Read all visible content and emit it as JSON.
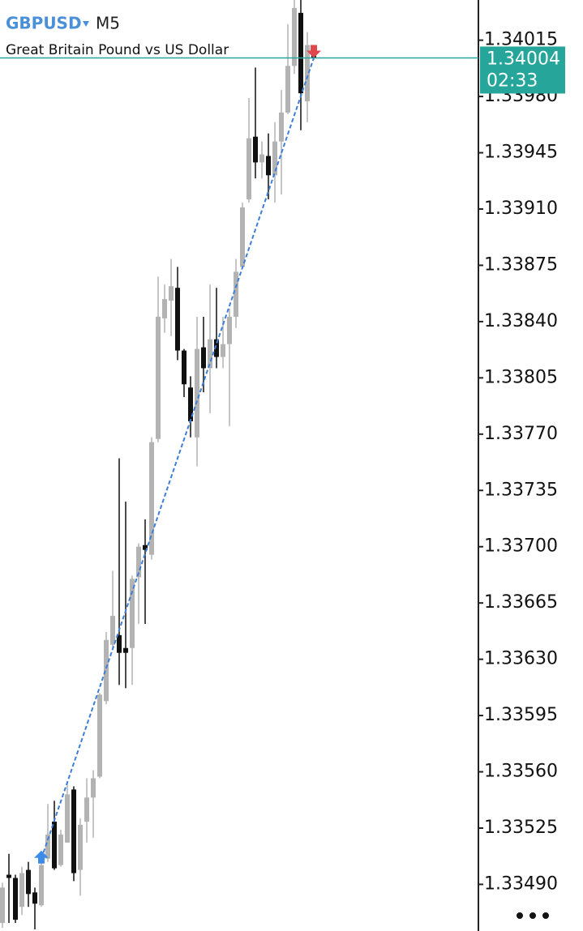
{
  "chart_data": {
    "type": "candlestick",
    "title": "GBPUSD",
    "timeframe": "M5",
    "subtitle": "Great Britain Pound vs US Dollar",
    "open": [
      1.33466,
      1.33496,
      1.33494,
      1.33476,
      1.33499,
      1.33485,
      1.33477,
      1.33506,
      1.33529,
      1.33502,
      1.33516,
      1.33549,
      1.33499,
      1.33529,
      1.33544,
      1.33557,
      1.33604,
      1.33639,
      1.33645,
      1.33637,
      1.33637,
      1.33681,
      1.33701,
      1.33695,
      1.33767,
      1.33842,
      1.33853,
      1.33861,
      1.33822,
      1.33799,
      1.33768,
      1.33824,
      1.33811,
      1.33829,
      1.33818,
      1.33826,
      1.33843,
      1.33874,
      1.33916,
      1.33955,
      1.33939,
      1.33943,
      1.33931,
      1.33952,
      1.3397,
      1.33999,
      1.34032,
      1.33977,
      1.34008
    ],
    "high": [
      1.33491,
      1.33509,
      1.33496,
      1.33501,
      1.33504,
      1.33488,
      1.33506,
      1.3354,
      1.33542,
      1.33524,
      1.33554,
      1.33551,
      1.33531,
      1.33556,
      1.33561,
      1.33609,
      1.33647,
      1.33685,
      1.33755,
      1.33728,
      1.33682,
      1.33702,
      1.33717,
      1.33768,
      1.33868,
      1.33863,
      1.33879,
      1.33874,
      1.33823,
      1.33806,
      1.33843,
      1.33843,
      1.33863,
      1.33861,
      1.33843,
      1.33848,
      1.33879,
      1.33914,
      1.33979,
      1.33998,
      1.33952,
      1.33957,
      1.33964,
      1.33984,
      1.34025,
      1.3404,
      1.3404,
      1.3402,
      1.3401
    ],
    "low": [
      1.33463,
      1.33466,
      1.33466,
      1.33471,
      1.33476,
      1.33462,
      1.33476,
      1.33504,
      1.33499,
      1.33501,
      1.33516,
      1.33492,
      1.33483,
      1.33516,
      1.33519,
      1.33556,
      1.33602,
      1.33637,
      1.33614,
      1.33612,
      1.33614,
      1.33652,
      1.33652,
      1.33692,
      1.33765,
      1.33833,
      1.33831,
      1.33816,
      1.33793,
      1.33768,
      1.3375,
      1.33796,
      1.33783,
      1.33811,
      1.33811,
      1.33775,
      1.33836,
      1.33874,
      1.33914,
      1.33929,
      1.33929,
      1.33916,
      1.33914,
      1.33919,
      1.33969,
      1.33994,
      1.33959,
      1.33964,
      1.34003
    ],
    "close": [
      1.33488,
      1.33494,
      1.33468,
      1.33497,
      1.33484,
      1.33478,
      1.33502,
      1.33521,
      1.335,
      1.33521,
      1.33546,
      1.33497,
      1.33527,
      1.33544,
      1.33556,
      1.33608,
      1.33642,
      1.33657,
      1.33634,
      1.33634,
      1.3368,
      1.337,
      1.33698,
      1.33765,
      1.33843,
      1.33854,
      1.33862,
      1.33822,
      1.33801,
      1.33778,
      1.33823,
      1.33811,
      1.33829,
      1.33818,
      1.33826,
      1.33843,
      1.33871,
      1.33911,
      1.33954,
      1.33939,
      1.33944,
      1.33931,
      1.33952,
      1.3397,
      1.33999,
      1.34035,
      1.33982,
      1.34012,
      1.34004
    ],
    "up_color": "#b3b3b3",
    "down_color": "#111111",
    "ylim": [
      1.33461,
      1.3404
    ],
    "yticks": [
      1.34015,
      {
        "value": 1.3398,
        "label": "1.33980"
      },
      1.33945,
      {
        "value": 1.3391,
        "label": "1.33910"
      },
      1.33875,
      {
        "value": 1.3384,
        "label": "1.33840"
      },
      1.33805,
      {
        "value": 1.3377,
        "label": "1.33770"
      },
      1.33735,
      {
        "value": 1.337,
        "label": "1.33700"
      },
      1.33665,
      {
        "value": 1.3363,
        "label": "1.33630"
      },
      1.33595,
      {
        "value": 1.3356,
        "label": "1.33560"
      },
      1.33525,
      {
        "value": 1.3349,
        "label": "1.33490"
      }
    ],
    "current_price": 1.34004,
    "countdown": "02:33",
    "price_line_color": "#26a69a",
    "trade": {
      "entry_bar": 6,
      "entry_price": 1.33506,
      "exit_bar": 48,
      "exit_price": 1.34004,
      "color": "#3d7fd6"
    }
  }
}
